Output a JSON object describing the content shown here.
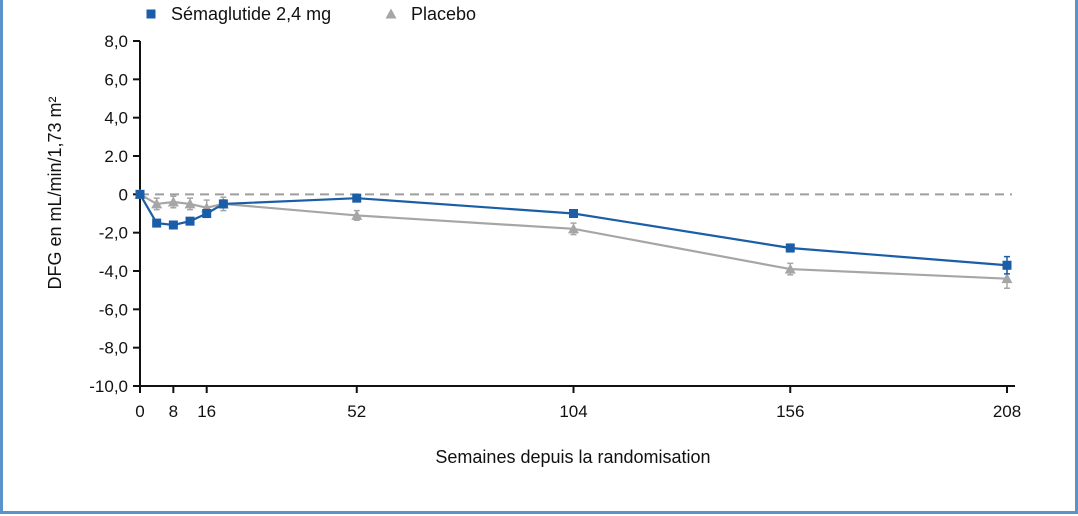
{
  "chart_data": {
    "type": "line",
    "xlabel": "Semaines depuis la randomisation",
    "ylabel": "DFG en mL/min/1,73 m²",
    "xlim": [
      0,
      208
    ],
    "ylim": [
      -10,
      8
    ],
    "x_ticks": [
      {
        "value": 0,
        "label": "0"
      },
      {
        "value": 8,
        "label": "8"
      },
      {
        "value": 16,
        "label": "16"
      },
      {
        "value": 52,
        "label": "52"
      },
      {
        "value": 104,
        "label": "104"
      },
      {
        "value": 156,
        "label": "156"
      },
      {
        "value": 208,
        "label": "208"
      }
    ],
    "y_ticks": [
      {
        "value": 8,
        "label": "8,0"
      },
      {
        "value": 6,
        "label": "6,0"
      },
      {
        "value": 4,
        "label": "4,0"
      },
      {
        "value": 2,
        "label": "2.0"
      },
      {
        "value": 0,
        "label": "0"
      },
      {
        "value": -2,
        "label": "-2,0"
      },
      {
        "value": -4,
        "label": "-4,0"
      },
      {
        "value": -6,
        "label": "-6,0"
      },
      {
        "value": -8,
        "label": "-8,0"
      },
      {
        "value": -10,
        "label": "-10,0"
      }
    ],
    "reference_line": {
      "y": 0,
      "style": "dashed",
      "color": "#9e9e9e"
    },
    "legend_position": "top-left",
    "series": [
      {
        "name": "Sémaglutide 2,4 mg",
        "color": "#1b5ea8",
        "marker": "square",
        "points": [
          {
            "x": 0,
            "y": 0.0,
            "err": 0.1
          },
          {
            "x": 4,
            "y": -1.5,
            "err": 0.15
          },
          {
            "x": 8,
            "y": -1.6,
            "err": 0.15
          },
          {
            "x": 12,
            "y": -1.4,
            "err": 0.15
          },
          {
            "x": 16,
            "y": -1.0,
            "err": 0.2
          },
          {
            "x": 20,
            "y": -0.5,
            "err": 0.2
          },
          {
            "x": 52,
            "y": -0.2,
            "err": 0.15
          },
          {
            "x": 104,
            "y": -1.0,
            "err": 0.15
          },
          {
            "x": 156,
            "y": -2.8,
            "err": 0.2
          },
          {
            "x": 208,
            "y": -3.7,
            "err": 0.45
          }
        ]
      },
      {
        "name": "Placebo",
        "color": "#a6a6a6",
        "marker": "triangle",
        "points": [
          {
            "x": 0,
            "y": 0.0,
            "err": 0.1
          },
          {
            "x": 4,
            "y": -0.5,
            "err": 0.3
          },
          {
            "x": 8,
            "y": -0.4,
            "err": 0.3
          },
          {
            "x": 12,
            "y": -0.5,
            "err": 0.3
          },
          {
            "x": 16,
            "y": -0.7,
            "err": 0.4
          },
          {
            "x": 20,
            "y": -0.5,
            "err": 0.35
          },
          {
            "x": 52,
            "y": -1.1,
            "err": 0.25
          },
          {
            "x": 104,
            "y": -1.8,
            "err": 0.3
          },
          {
            "x": 156,
            "y": -3.9,
            "err": 0.3
          },
          {
            "x": 208,
            "y": -4.4,
            "err": 0.5
          }
        ]
      }
    ]
  }
}
